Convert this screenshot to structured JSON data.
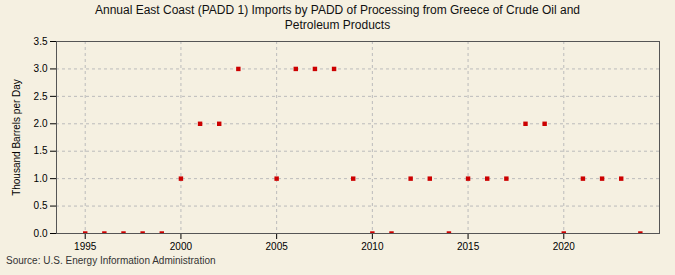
{
  "chart_data": {
    "type": "scatter",
    "title": "Annual East Coast (PADD 1) Imports by PADD of Processing from Greece of Crude Oil and\nPetroleum Products",
    "ylabel": "Thousand Barrels per Day",
    "annotations": [
      "Source: U.S. Energy Information Administration"
    ],
    "x": [
      1995,
      1996,
      1997,
      1998,
      1999,
      2000,
      2001,
      2002,
      2003,
      2005,
      2006,
      2007,
      2008,
      2009,
      2010,
      2011,
      2012,
      2013,
      2014,
      2015,
      2016,
      2017,
      2018,
      2019,
      2020,
      2021,
      2022,
      2023,
      2024
    ],
    "values": [
      0,
      0,
      0,
      0,
      0,
      1,
      2,
      2,
      3,
      1,
      3,
      3,
      3,
      1,
      0,
      0,
      1,
      1,
      0,
      1,
      1,
      1,
      2,
      2,
      0,
      1,
      1,
      1,
      0
    ],
    "color": "#cc0000",
    "marker": "square",
    "xlim": [
      1993.5,
      2025
    ],
    "ylim": [
      0.0,
      3.5
    ],
    "xticks": [
      1995,
      2000,
      2005,
      2010,
      2015,
      2020
    ],
    "yticks": [
      {
        "value": 0,
        "label": "0.0"
      },
      0.5,
      {
        "value": 1,
        "label": "1.0"
      },
      1.5,
      {
        "value": 2,
        "label": "2.0"
      },
      2.5,
      {
        "value": 3,
        "label": "3.0"
      },
      3.5
    ],
    "grid": true
  }
}
